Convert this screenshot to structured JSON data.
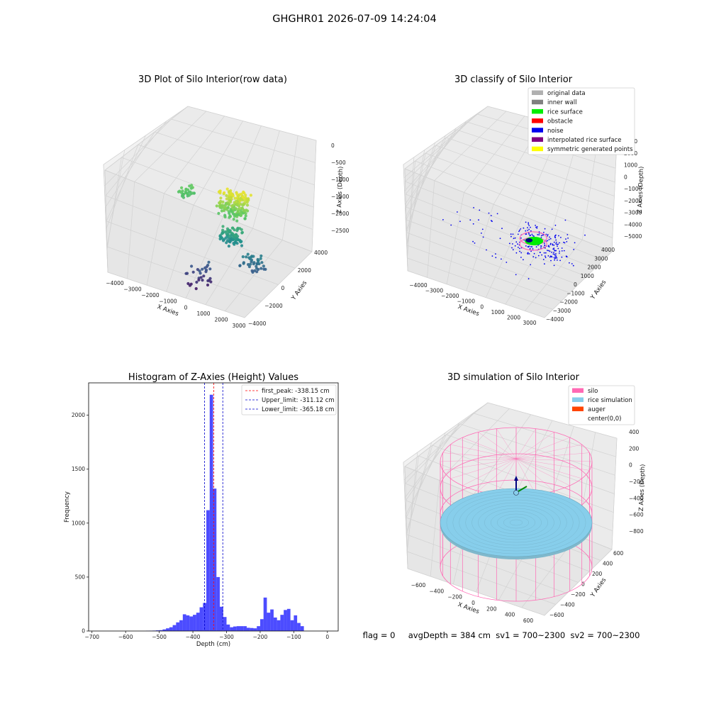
{
  "suptitle": "GHGHR01 2026-07-09 14:24:04",
  "footer": "flag = 0     avgDepth = 384 cm  sv1 = 700~2300  sv2 = 700~2300",
  "chart_data": [
    {
      "type": "scatter3d",
      "title": "3D Plot of Silo Interior(row data)",
      "xlabel": "X Axies",
      "ylabel": "Y Axies",
      "zlabel": "Z Axies (Depth)",
      "x_ticks": [
        "−4000",
        "−3000",
        "−2000",
        "−1000",
        "0",
        "1000",
        "2000",
        "3000"
      ],
      "y_ticks": [
        "−4000",
        "−2000",
        "0",
        "2000",
        "4000"
      ],
      "z_ticks": [
        "0",
        "−500",
        "−1000",
        "−1500",
        "−2000",
        "−2500"
      ],
      "colormap": "viridis",
      "clusters": [
        {
          "x": [
            -3300,
            -2800
          ],
          "y": [
            1000,
            3000
          ],
          "z": [
            -1100,
            -1400
          ],
          "n": 30
        },
        {
          "x": [
            -600,
            600
          ],
          "y": [
            -500,
            1000
          ],
          "z": [
            -400,
            -1300
          ],
          "n": 170
        },
        {
          "x": [
            -200,
            700
          ],
          "y": [
            -600,
            600
          ],
          "z": [
            -1600,
            -2200
          ],
          "n": 80
        },
        {
          "x": [
            1200,
            2000
          ],
          "y": [
            -1000,
            500
          ],
          "z": [
            -2300,
            -2800
          ],
          "n": 40
        },
        {
          "x": [
            -500,
            300
          ],
          "y": [
            -3500,
            -1500
          ],
          "z": [
            -2700,
            -3600
          ],
          "n": 30
        }
      ]
    },
    {
      "type": "scatter3d",
      "title": "3D classify of Silo Interior",
      "xlabel": "X Axies",
      "ylabel": "Y Axies",
      "zlabel": "Z Axies (Depth)",
      "x_ticks": [
        "−4000",
        "−3000",
        "−2000",
        "−1000",
        "0",
        "1000",
        "2000",
        "3000"
      ],
      "y_ticks": [
        "−4000",
        "−3000",
        "−2000",
        "−1000",
        "0",
        "1000",
        "2000",
        "3000",
        "4000"
      ],
      "z_ticks": [
        "3000",
        "2000",
        "1000",
        "0",
        "−1000",
        "−2000",
        "−3000",
        "−4000",
        "−5000"
      ],
      "legend": [
        {
          "label": "original data",
          "color": "#b0b0b0"
        },
        {
          "label": "inner wall",
          "color": "#808080"
        },
        {
          "label": "rice surface",
          "color": "#00ee00"
        },
        {
          "label": "obstacle",
          "color": "#ff0000"
        },
        {
          "label": "noise",
          "color": "#0000ee"
        },
        {
          "label": "interpolated rice surface",
          "color": "#800080"
        },
        {
          "label": "symmetric generated points",
          "color": "#ffff00"
        }
      ]
    },
    {
      "type": "bar",
      "title": "Histogram of Z-Axies (Height) Values",
      "xlabel": "Depth (cm)",
      "ylabel": "Frequency",
      "xlim": [
        -710,
        32
      ],
      "ylim": [
        0,
        2300
      ],
      "x_ticks": [
        -700,
        -600,
        -500,
        -400,
        -300,
        -200,
        -100,
        0
      ],
      "y_ticks": [
        0,
        500,
        1000,
        1500,
        2000
      ],
      "bar_color": "#0000ff",
      "bins": [
        {
          "x": -540,
          "v": 2
        },
        {
          "x": -530,
          "v": 3
        },
        {
          "x": -520,
          "v": 4
        },
        {
          "x": -510,
          "v": 6
        },
        {
          "x": -500,
          "v": 8
        },
        {
          "x": -490,
          "v": 15
        },
        {
          "x": -480,
          "v": 25
        },
        {
          "x": -470,
          "v": 35
        },
        {
          "x": -460,
          "v": 55
        },
        {
          "x": -450,
          "v": 80
        },
        {
          "x": -440,
          "v": 100
        },
        {
          "x": -430,
          "v": 155
        },
        {
          "x": -420,
          "v": 145
        },
        {
          "x": -410,
          "v": 135
        },
        {
          "x": -400,
          "v": 150
        },
        {
          "x": -390,
          "v": 170
        },
        {
          "x": -380,
          "v": 220
        },
        {
          "x": -370,
          "v": 260
        },
        {
          "x": -360,
          "v": 1120
        },
        {
          "x": -350,
          "v": 2190
        },
        {
          "x": -340,
          "v": 1320
        },
        {
          "x": -330,
          "v": 500
        },
        {
          "x": -320,
          "v": 225
        },
        {
          "x": -310,
          "v": 130
        },
        {
          "x": -300,
          "v": 60
        },
        {
          "x": -290,
          "v": 35
        },
        {
          "x": -280,
          "v": 42
        },
        {
          "x": -270,
          "v": 45
        },
        {
          "x": -260,
          "v": 45
        },
        {
          "x": -250,
          "v": 45
        },
        {
          "x": -240,
          "v": 30
        },
        {
          "x": -230,
          "v": 28
        },
        {
          "x": -220,
          "v": 25
        },
        {
          "x": -210,
          "v": 45
        },
        {
          "x": -200,
          "v": 110
        },
        {
          "x": -190,
          "v": 310
        },
        {
          "x": -180,
          "v": 170
        },
        {
          "x": -170,
          "v": 200
        },
        {
          "x": -160,
          "v": 125
        },
        {
          "x": -150,
          "v": 100
        },
        {
          "x": -140,
          "v": 150
        },
        {
          "x": -130,
          "v": 195
        },
        {
          "x": -120,
          "v": 205
        },
        {
          "x": -110,
          "v": 100
        },
        {
          "x": -100,
          "v": 145
        },
        {
          "x": -90,
          "v": 75
        },
        {
          "x": -80,
          "v": 45
        }
      ],
      "bin_width": 10,
      "vlines": [
        {
          "label": "first_peak: -338.15 cm",
          "x": -338.15,
          "color": "#ff0000"
        },
        {
          "label": "Upper_limit: -311.12 cm",
          "x": -311.12,
          "color": "#0000cc"
        },
        {
          "label": "Lower_limit: -365.18 cm",
          "x": -365.18,
          "color": "#0000cc"
        }
      ]
    },
    {
      "type": "surface3d",
      "title": "3D simulation of Silo Interior",
      "xlabel": "X Axies",
      "ylabel": "Y Axies",
      "zlabel": "Z Axies (Depth)",
      "x_ticks": [
        "−600",
        "−400",
        "−200",
        "0",
        "200",
        "400",
        "600"
      ],
      "y_ticks": [
        "−600",
        "−400",
        "−200",
        "0",
        "200",
        "400",
        "600"
      ],
      "z_ticks": [
        "400",
        "200",
        "0",
        "−200",
        "−400",
        "−600",
        "−800"
      ],
      "legend": [
        {
          "label": "silo",
          "color": "#ff69b4"
        },
        {
          "label": "rice simulation",
          "color": "#87ceeb"
        },
        {
          "label": "auger",
          "color": "#ff4500"
        },
        {
          "label": "center(0,0)",
          "color": "none"
        }
      ]
    }
  ]
}
